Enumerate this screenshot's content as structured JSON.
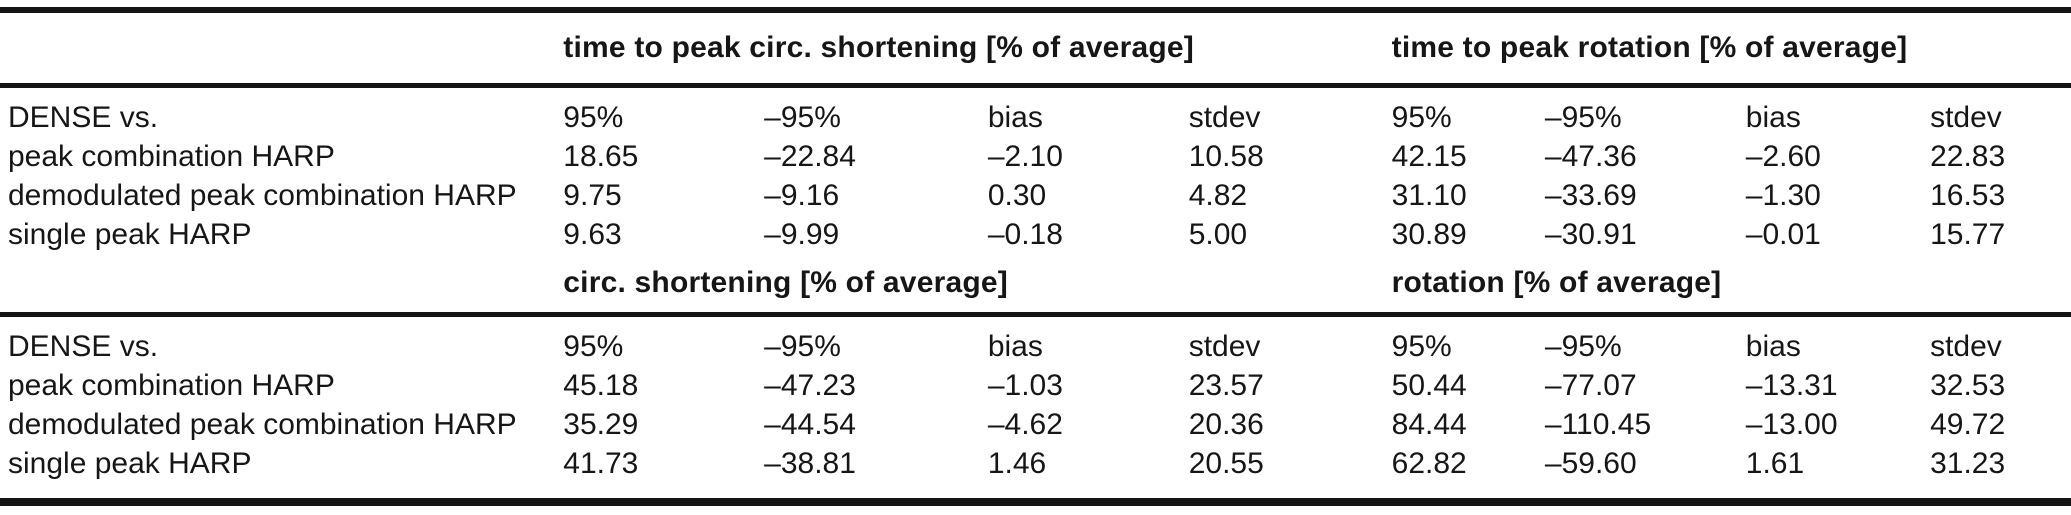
{
  "colors": {
    "text": "#161616",
    "rule": "#131313",
    "background": "#ffffff"
  },
  "table": {
    "sections": [
      {
        "group_headers": [
          {
            "label": "time to peak circ. shortening [% of average]"
          },
          {
            "label": "time to peak rotation [% of average]"
          }
        ],
        "header": {
          "label": "DENSE vs.",
          "cols": [
            "95%",
            "–95%",
            "bias",
            "stdev",
            "95%",
            "–95%",
            "bias",
            "stdev"
          ]
        },
        "rows": [
          {
            "label": "peak combination HARP",
            "values": [
              "18.65",
              "–22.84",
              "–2.10",
              "10.58",
              "42.15",
              "–47.36",
              "–2.60",
              "22.83"
            ]
          },
          {
            "label": "demodulated peak combination HARP",
            "values": [
              "9.75",
              "–9.16",
              "0.30",
              "4.82",
              "31.10",
              "–33.69",
              "–1.30",
              "16.53"
            ]
          },
          {
            "label": "single peak HARP",
            "values": [
              "9.63",
              "–9.99",
              "–0.18",
              "5.00",
              "30.89",
              "–30.91",
              "–0.01",
              "15.77"
            ]
          }
        ]
      },
      {
        "group_headers": [
          {
            "label": "circ. shortening [% of average]"
          },
          {
            "label": "rotation [% of average]"
          }
        ],
        "header": {
          "label": "DENSE vs.",
          "cols": [
            "95%",
            "–95%",
            "bias",
            "stdev",
            "95%",
            "–95%",
            "bias",
            "stdev"
          ]
        },
        "rows": [
          {
            "label": "peak combination HARP",
            "values": [
              "45.18",
              "–47.23",
              "–1.03",
              "23.57",
              "50.44",
              "–77.07",
              "–13.31",
              "32.53"
            ]
          },
          {
            "label": "demodulated peak combination HARP",
            "values": [
              "35.29",
              "–44.54",
              "–4.62",
              "20.36",
              "84.44",
              "–110.45",
              "–13.00",
              "49.72"
            ]
          },
          {
            "label": "single peak HARP",
            "values": [
              "41.73",
              "–38.81",
              "1.46",
              "20.55",
              "62.82",
              "–59.60",
              "1.61",
              "31.23"
            ]
          }
        ]
      }
    ]
  }
}
